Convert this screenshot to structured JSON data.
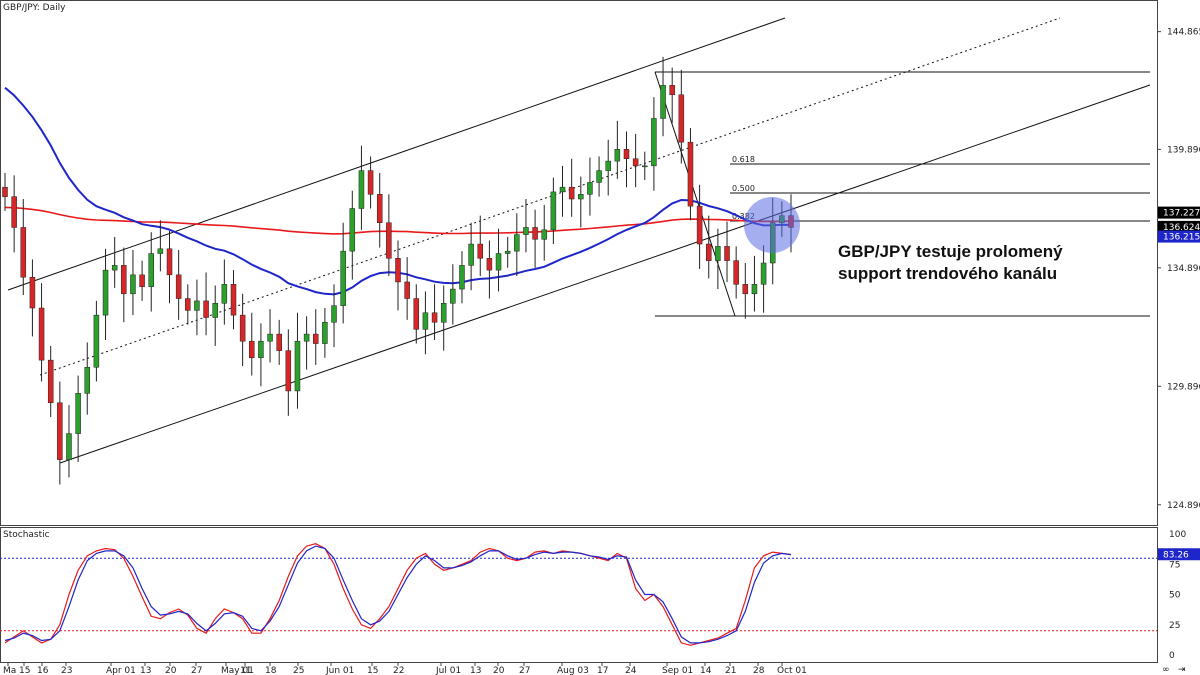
{
  "colors": {
    "bull": "#2ca02c",
    "bear": "#d62728",
    "ma_red": "#e8191b",
    "ma_blue": "#1f26c9",
    "stoch_k": "#e8191b",
    "stoch_d": "#1f26c9",
    "trend": "#111111",
    "highlight": "#5b6ee1",
    "tag_black": "#000000",
    "tag_blue": "#1f26c9"
  },
  "price_panel": {
    "title": "GBP/JPY: Daily"
  },
  "stoch_panel": {
    "title": "Stochastic",
    "current_value": "83.26"
  },
  "annotation": {
    "line1": "GBP/JPY testuje prolomený",
    "line2": "support trendového kanálu"
  },
  "price_tags": [
    {
      "label": "144.865",
      "value": 144.865,
      "style": "plain"
    },
    {
      "label": "137.227",
      "value": 137.227,
      "style": "black"
    },
    {
      "label": "136.624",
      "value": 136.624,
      "style": "black"
    },
    {
      "label": "136.215",
      "value": 136.215,
      "style": "blue"
    }
  ],
  "icons": [
    "link-icon",
    "arrow-right-icon"
  ],
  "chart_data": {
    "type": "candlestick",
    "title": "GBP/JPY: Daily",
    "y_axis": {
      "ticks": [
        "144.865",
        "139.896",
        "134.896",
        "129.896",
        "124.896"
      ],
      "range": [
        124.0,
        146.2
      ]
    },
    "x_axis": {
      "labels": [
        "Ma",
        "15",
        "16",
        "23",
        "Apr 01",
        "13",
        "20",
        "27",
        "May 01",
        "11",
        "18",
        "25",
        "Jun 01",
        "15",
        "22",
        "Jul 01",
        "13",
        "20",
        "27",
        "Aug 03",
        "17",
        "24",
        "Sep 01",
        "14",
        "21",
        "28",
        "Oct 01"
      ]
    },
    "close_series": [
      137.9,
      136.6,
      134.5,
      133.2,
      131.0,
      129.2,
      126.8,
      127.9,
      129.6,
      130.7,
      132.9,
      134.8,
      135.0,
      133.8,
      134.6,
      134.1,
      135.5,
      135.7,
      134.6,
      133.6,
      133.1,
      133.5,
      132.8,
      133.4,
      134.2,
      132.9,
      131.8,
      131.1,
      131.8,
      132.1,
      131.4,
      129.7,
      131.8,
      132.1,
      131.7,
      132.6,
      133.3,
      135.6,
      137.4,
      139.0,
      138.0,
      136.8,
      135.3,
      134.3,
      133.6,
      132.3,
      133.0,
      132.6,
      133.4,
      134.0,
      135.0,
      135.9,
      135.3,
      134.8,
      135.5,
      135.6,
      136.3,
      136.6,
      136.1,
      136.5,
      138.1,
      138.3,
      137.8,
      138.0,
      138.5,
      139.0,
      139.4,
      139.9,
      139.5,
      139.2,
      139.2,
      141.2,
      142.6,
      142.2,
      140.2,
      137.5,
      135.9,
      135.2,
      135.8,
      135.2,
      134.2,
      133.8,
      134.2,
      135.1,
      136.8,
      137.1,
      136.6
    ]
  },
  "stochastic": {
    "range": [
      0,
      100
    ],
    "levels": [
      80,
      20
    ],
    "ticks": [
      "100",
      "75",
      "50",
      "25",
      "0"
    ],
    "k": [
      10,
      15,
      20,
      15,
      10,
      13,
      25,
      50,
      70,
      82,
      86,
      88,
      87,
      80,
      65,
      48,
      32,
      30,
      35,
      38,
      33,
      22,
      18,
      30,
      38,
      35,
      30,
      18,
      18,
      30,
      45,
      65,
      82,
      90,
      92,
      88,
      75,
      55,
      38,
      25,
      22,
      30,
      40,
      55,
      70,
      80,
      84,
      75,
      70,
      72,
      75,
      78,
      85,
      88,
      86,
      80,
      78,
      80,
      85,
      86,
      84,
      86,
      85,
      84,
      82,
      80,
      78,
      84,
      80,
      55,
      45,
      50,
      40,
      25,
      10,
      8,
      10,
      12,
      14,
      18,
      22,
      45,
      72,
      82,
      85,
      84,
      83
    ],
    "d": [
      12,
      14,
      18,
      16,
      12,
      13,
      20,
      40,
      62,
      78,
      84,
      86,
      86,
      82,
      72,
      55,
      40,
      33,
      34,
      36,
      34,
      26,
      20,
      26,
      34,
      35,
      32,
      22,
      20,
      28,
      40,
      58,
      76,
      86,
      90,
      88,
      80,
      62,
      45,
      30,
      25,
      28,
      36,
      50,
      64,
      75,
      82,
      78,
      72,
      72,
      74,
      77,
      82,
      86,
      86,
      82,
      79,
      80,
      83,
      85,
      84,
      85,
      85,
      84,
      82,
      81,
      79,
      82,
      81,
      62,
      50,
      50,
      44,
      30,
      15,
      10,
      10,
      11,
      13,
      16,
      20,
      36,
      60,
      76,
      82,
      84,
      83
    ]
  }
}
